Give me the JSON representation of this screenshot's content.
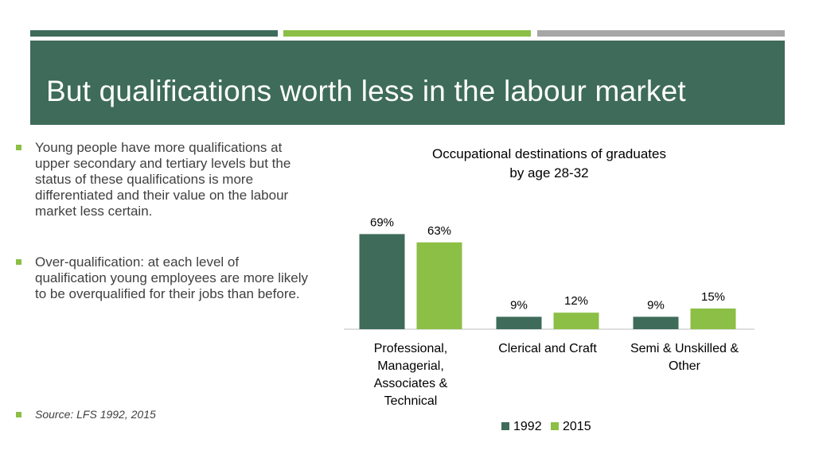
{
  "slide": {
    "title": "But qualifications worth less in the labour market",
    "bullets": [
      "Young people have more qualifications at upper secondary and tertiary levels but the status of these qualifications is more differentiated and their value on the labour market less certain.",
      "Over-qualification: at each level of qualification young employees are more likely to be overqualified for their jobs than before.",
      "Source: LFS 1992, 2015"
    ]
  },
  "colors": {
    "dark_green": "#3e6b5a",
    "light_green": "#8cbf45",
    "grey": "#a6a6a6"
  },
  "chart_data": {
    "type": "bar",
    "title_line1": "Occupational destinations of graduates",
    "title_line2": "by age 28-32",
    "categories": [
      "Professional, Managerial, Associates & Technical",
      "Clerical and Craft",
      "Semi & Unskilled & Other"
    ],
    "category_lines": [
      [
        "Professional,",
        "Managerial,",
        "Associates &",
        "Technical"
      ],
      [
        "Clerical and Craft"
      ],
      [
        "Semi & Unskilled &",
        "Other"
      ]
    ],
    "series": [
      {
        "name": "1992",
        "values": [
          69,
          9,
          9
        ],
        "labels": [
          "69%",
          "9%",
          "9%"
        ],
        "color": "#3e6b5a"
      },
      {
        "name": "2015",
        "values": [
          63,
          12,
          15
        ],
        "labels": [
          "63%",
          "12%",
          "15%"
        ],
        "color": "#8cbf45"
      }
    ],
    "ylim": [
      0,
      75
    ],
    "legend_position": "bottom",
    "grid": false
  }
}
